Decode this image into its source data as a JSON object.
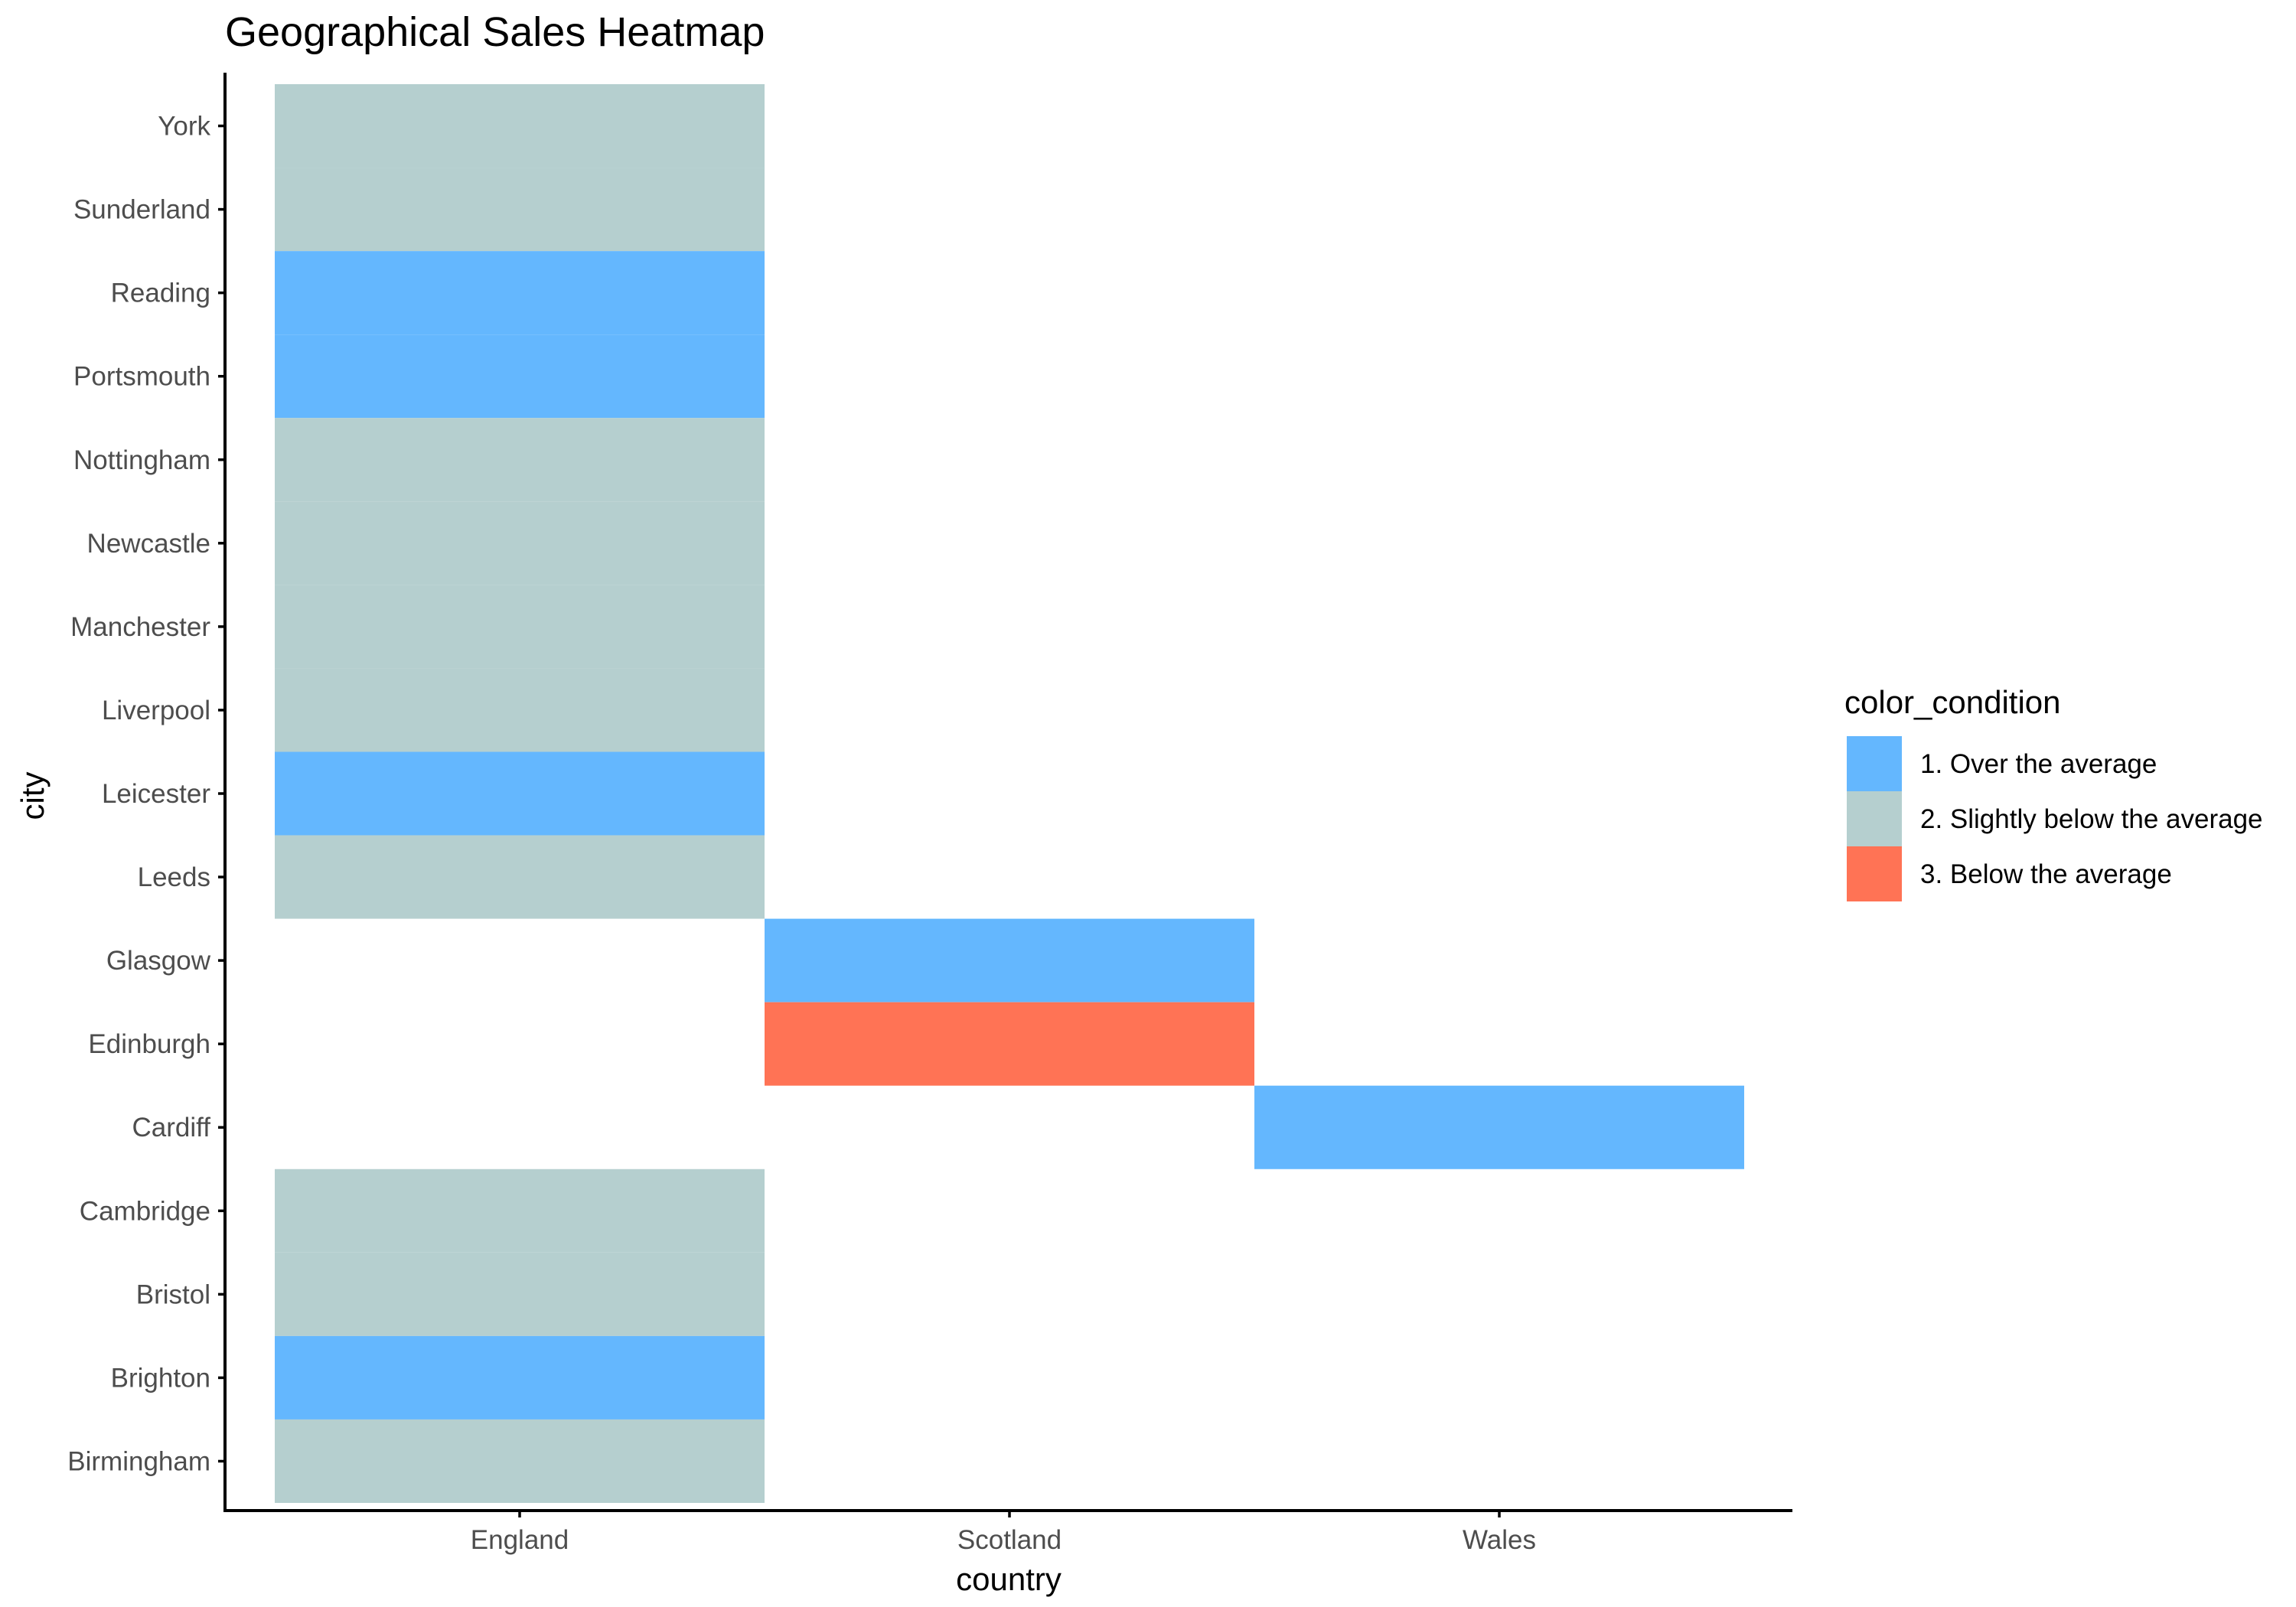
{
  "chart_data": {
    "type": "heatmap",
    "title": "Geographical Sales Heatmap",
    "xlabel": "country",
    "ylabel": "city",
    "x_categories": [
      "England",
      "Scotland",
      "Wales"
    ],
    "y_categories": [
      "Birmingham",
      "Brighton",
      "Bristol",
      "Cambridge",
      "Cardiff",
      "Edinburgh",
      "Glasgow",
      "Leeds",
      "Leicester",
      "Liverpool",
      "Manchester",
      "Newcastle",
      "Nottingham",
      "Portsmouth",
      "Reading",
      "Sunderland",
      "York"
    ],
    "legend": {
      "title": "color_condition",
      "placement": "right",
      "entries": [
        {
          "label": "1. Over the average",
          "color": "#64b7fe"
        },
        {
          "label": "2. Slightly below the average",
          "color": "#b5cfcf"
        },
        {
          "label": "3. Below the average",
          "color": "#ff7355"
        }
      ]
    },
    "cells": [
      {
        "country": "England",
        "city": "York",
        "condition": "2. Slightly below the average"
      },
      {
        "country": "England",
        "city": "Sunderland",
        "condition": "2. Slightly below the average"
      },
      {
        "country": "England",
        "city": "Reading",
        "condition": "1. Over the average"
      },
      {
        "country": "England",
        "city": "Portsmouth",
        "condition": "1. Over the average"
      },
      {
        "country": "England",
        "city": "Nottingham",
        "condition": "2. Slightly below the average"
      },
      {
        "country": "England",
        "city": "Newcastle",
        "condition": "2. Slightly below the average"
      },
      {
        "country": "England",
        "city": "Manchester",
        "condition": "2. Slightly below the average"
      },
      {
        "country": "England",
        "city": "Liverpool",
        "condition": "2. Slightly below the average"
      },
      {
        "country": "England",
        "city": "Leicester",
        "condition": "1. Over the average"
      },
      {
        "country": "England",
        "city": "Leeds",
        "condition": "2. Slightly below the average"
      },
      {
        "country": "Scotland",
        "city": "Glasgow",
        "condition": "1. Over the average"
      },
      {
        "country": "Scotland",
        "city": "Edinburgh",
        "condition": "3. Below the average"
      },
      {
        "country": "Wales",
        "city": "Cardiff",
        "condition": "1. Over the average"
      },
      {
        "country": "England",
        "city": "Cambridge",
        "condition": "2. Slightly below the average"
      },
      {
        "country": "England",
        "city": "Bristol",
        "condition": "2. Slightly below the average"
      },
      {
        "country": "England",
        "city": "Brighton",
        "condition": "1. Over the average"
      },
      {
        "country": "England",
        "city": "Birmingham",
        "condition": "2. Slightly below the average"
      }
    ],
    "grid": false
  }
}
